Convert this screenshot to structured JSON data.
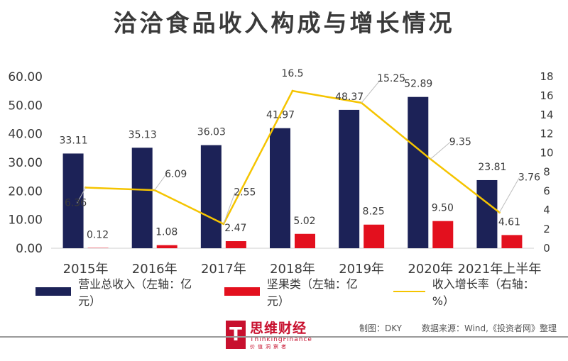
{
  "title": "洽洽食品收入构成与增长情况",
  "chart_data": {
    "type": "bar",
    "categories": [
      "2015年",
      "2016年",
      "2017年",
      "2018年",
      "2019年",
      "2020年",
      "2021年上半年"
    ],
    "series": [
      {
        "name": "营业总收入（左轴：亿元）",
        "kind": "bar",
        "axis": "left",
        "color": "#1c2257",
        "values": [
          33.11,
          35.13,
          36.03,
          41.97,
          48.37,
          52.89,
          23.81
        ]
      },
      {
        "name": "坚果类（左轴：亿元）",
        "kind": "bar",
        "axis": "left",
        "color": "#e3101e",
        "values": [
          0.12,
          1.08,
          2.47,
          5.02,
          8.25,
          9.5,
          4.61
        ]
      },
      {
        "name": "收入增长率（右轴：%）",
        "kind": "line",
        "axis": "right",
        "color": "#f5c400",
        "values": [
          6.36,
          6.09,
          2.55,
          16.5,
          15.25,
          9.35,
          3.76
        ]
      }
    ],
    "y_left": {
      "range": [
        0,
        60
      ],
      "ticks": [
        "0.00",
        "10.00",
        "20.00",
        "30.00",
        "40.00",
        "50.00",
        "60.00"
      ]
    },
    "y_right": {
      "range": [
        0,
        18
      ],
      "ticks": [
        "0",
        "2",
        "4",
        "6",
        "8",
        "10",
        "12",
        "14",
        "16",
        "18"
      ]
    },
    "labels": {
      "total": [
        "33.11",
        "35.13",
        "36.03",
        "41.97",
        "48.37",
        "52.89",
        "23.81"
      ],
      "nuts": [
        "0.12",
        "1.08",
        "2.47",
        "5.02",
        "8.25",
        "9.50",
        "4.61"
      ],
      "growth": [
        "6.36",
        "6.09",
        "2.55",
        "16.5",
        "15.25",
        "9.35",
        "3.76"
      ]
    },
    "grid": false,
    "legend_position": "bottom"
  },
  "legend": [
    {
      "label": "营业总收入（左轴：亿元）",
      "color": "#1c2257",
      "type": "bar"
    },
    {
      "label": "坚果类（左轴：亿元）",
      "color": "#e3101e",
      "type": "bar"
    },
    {
      "label": "收入增长率（右轴：%）",
      "color": "#f5c400",
      "type": "line"
    }
  ],
  "footer": {
    "logo_main": "思维财经",
    "logo_sub": "ThinkingFinance",
    "logo_tag": "价值洞察者",
    "logo_mark": "T",
    "maker": "制图：DKY",
    "source": "数据来源：Wind,《投资者网》整理"
  }
}
